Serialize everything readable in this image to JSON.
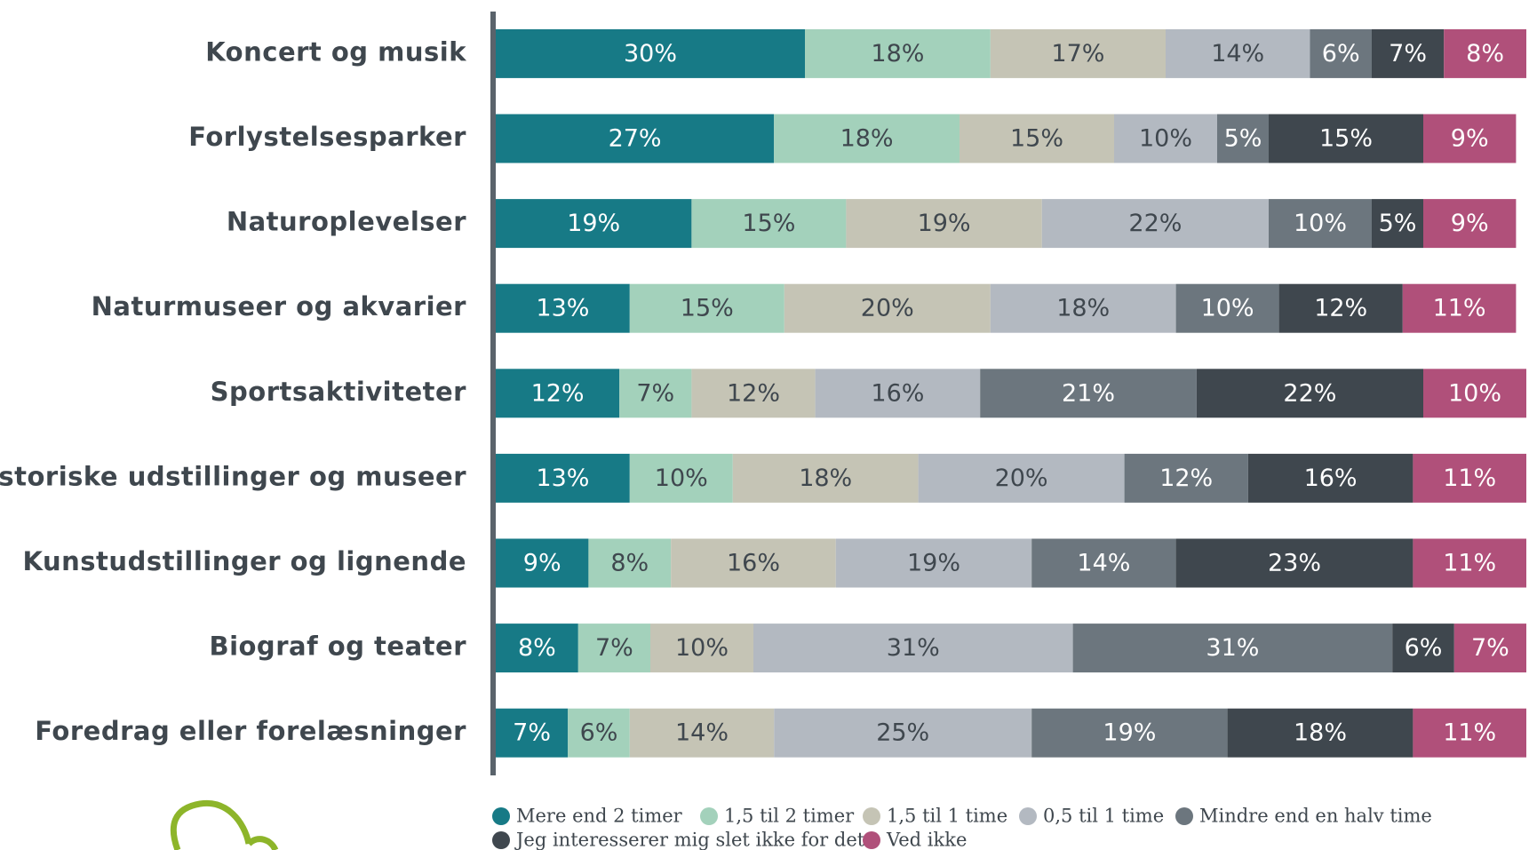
{
  "chart_data": {
    "type": "stacked-bar-horizontal",
    "categories": [
      "Koncert og musik",
      "Forlystelsesparker",
      "Naturoplevelser",
      "Naturmuseer og akvarier",
      "Sportsaktiviteter",
      "Historiske udstillinger og museer",
      "Kunstudstillinger og lignende",
      "Biograf og teater",
      "Foredrag eller forelæsninger"
    ],
    "xlim": [
      0,
      100
    ],
    "series": [
      {
        "name": "Mere end 2 timer",
        "color": "#177a86",
        "label_color": "#ffffff",
        "values": [
          30,
          27,
          19,
          13,
          12,
          13,
          9,
          8,
          7
        ],
        "value_labels": [
          "30%",
          "27%",
          "19%",
          "13%",
          "12%",
          "13%",
          "9%",
          "8%",
          "7%"
        ]
      },
      {
        "name": "1,5 til 2 timer",
        "color": "#a3d1bb",
        "label_color": "#3f474e",
        "values": [
          18,
          18,
          15,
          15,
          7,
          10,
          8,
          7,
          6
        ],
        "value_labels": [
          "18%",
          "18%",
          "15%",
          "15%",
          "7%",
          "10%",
          "8%",
          "7%",
          "6%"
        ]
      },
      {
        "name": "1,5 til 1 time",
        "color": "#c5c4b5",
        "label_color": "#3f474e",
        "values": [
          17,
          15,
          19,
          20,
          12,
          18,
          16,
          10,
          14
        ],
        "value_labels": [
          "17%",
          "15%",
          "19%",
          "20%",
          "12%",
          "18%",
          "16%",
          "10%",
          "14%"
        ]
      },
      {
        "name": "0,5 til 1 time",
        "color": "#b3b9c1",
        "label_color": "#3f474e",
        "values": [
          14,
          10,
          22,
          18,
          16,
          20,
          19,
          31,
          25
        ],
        "value_labels": [
          "14%",
          "10%",
          "22%",
          "18%",
          "16%",
          "20%",
          "19%",
          "31%",
          "25%"
        ]
      },
      {
        "name": "Mindre end en halv time",
        "color": "#6c767e",
        "label_color": "#ffffff",
        "values": [
          6,
          5,
          10,
          10,
          21,
          12,
          14,
          31,
          19
        ],
        "value_labels": [
          "6%",
          "5%",
          "10%",
          "10%",
          "21%",
          "12%",
          "14%",
          "31%",
          "19%"
        ]
      },
      {
        "name": "Jeg interesserer mig slet ikke for det",
        "color": "#3f474e",
        "label_color": "#ffffff",
        "values": [
          7,
          15,
          5,
          12,
          22,
          16,
          23,
          6,
          18
        ],
        "value_labels": [
          "7%",
          "15%",
          "5%",
          "12%",
          "22%",
          "16%",
          "23%",
          "6%",
          "18%"
        ]
      },
      {
        "name": "Ved ikke",
        "color": "#b0507a",
        "label_color": "#ffffff",
        "values": [
          8,
          9,
          9,
          11,
          10,
          11,
          11,
          7,
          11
        ],
        "value_labels": [
          "8%",
          "9%",
          "9%",
          "11%",
          "10%",
          "11%",
          "11%",
          "7%",
          "11%"
        ]
      }
    ]
  }
}
